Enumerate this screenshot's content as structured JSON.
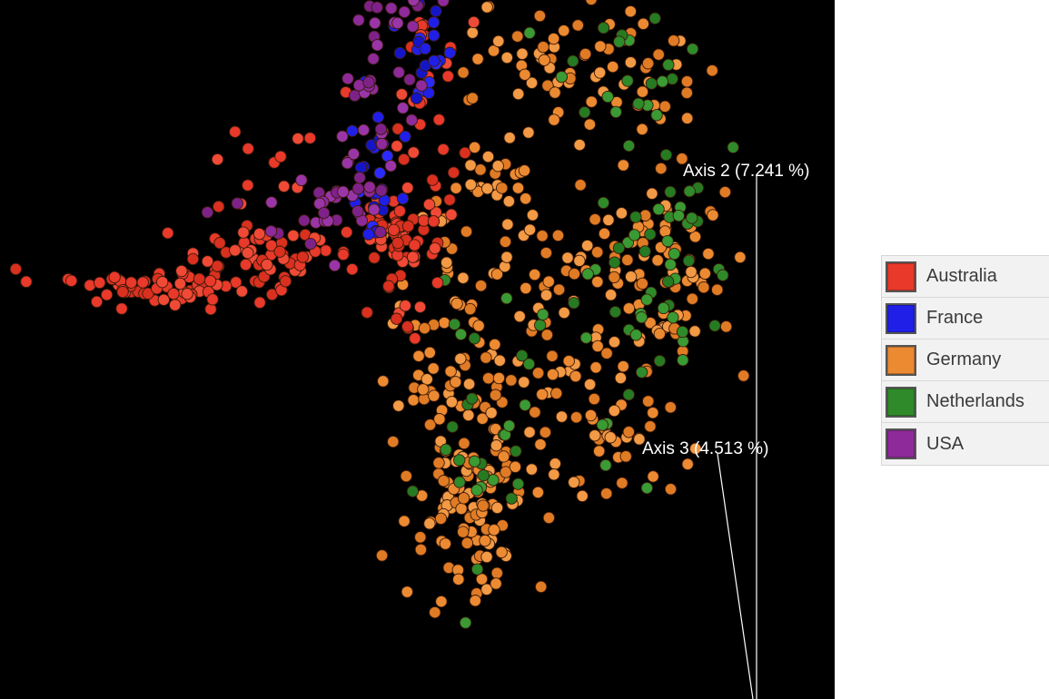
{
  "chart_data": {
    "type": "scatter",
    "title": "",
    "axes": [
      {
        "label": "Axis 2 (7.241 %)"
      },
      {
        "label": "Axis 3 (4.513 %)"
      }
    ],
    "background": "#000000",
    "legend_position": "right",
    "series": [
      {
        "name": "Australia",
        "color": "#e8392a"
      },
      {
        "name": "France",
        "color": "#1f1fe8"
      },
      {
        "name": "Germany",
        "color": "#ec8a32"
      },
      {
        "name": "Netherlands",
        "color": "#2f8a2a"
      },
      {
        "name": "USA",
        "color": "#8e2a9a"
      }
    ]
  }
}
